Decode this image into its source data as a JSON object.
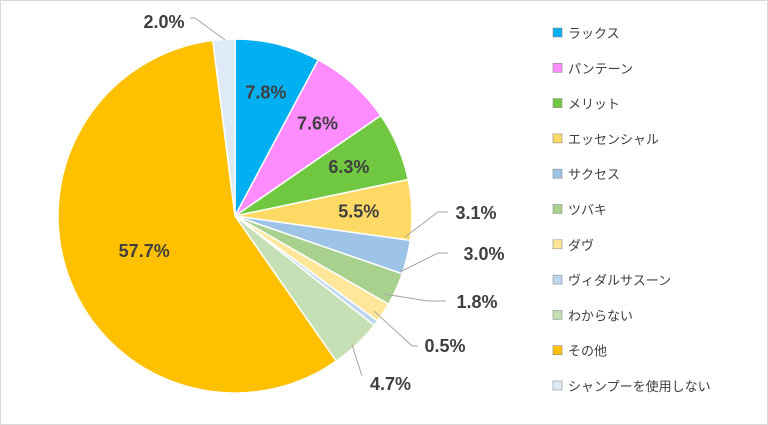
{
  "chart_data": {
    "type": "pie",
    "start_angle_deg": 0,
    "direction": "clockwise",
    "legend_position": "right",
    "slices": [
      {
        "label": "ラックス",
        "value": 7.8,
        "display": "7.8%",
        "color": "#00b0f0",
        "label_mode": "inside"
      },
      {
        "label": "パンテーン",
        "value": 7.6,
        "display": "7.6%",
        "color": "#ff8cff",
        "label_mode": "inside"
      },
      {
        "label": "メリット",
        "value": 6.3,
        "display": "6.3%",
        "color": "#70c840",
        "label_mode": "inside"
      },
      {
        "label": "エッセンシャル",
        "value": 5.5,
        "display": "5.5%",
        "color": "#ffd966",
        "label_mode": "inside"
      },
      {
        "label": "サクセス",
        "value": 3.1,
        "display": "3.1%",
        "color": "#9dc3e6",
        "label_mode": "outside"
      },
      {
        "label": "ツバキ",
        "value": 3.0,
        "display": "3.0%",
        "color": "#a9d18e",
        "label_mode": "outside"
      },
      {
        "label": "ダヴ",
        "value": 1.8,
        "display": "1.8%",
        "color": "#ffe699",
        "label_mode": "outside"
      },
      {
        "label": "ヴィダルサスーン",
        "value": 0.5,
        "display": "0.5%",
        "color": "#bdd7ee",
        "label_mode": "outside"
      },
      {
        "label": "わからない",
        "value": 4.7,
        "display": "4.7%",
        "color": "#c5e0b4",
        "label_mode": "outside"
      },
      {
        "label": "その他",
        "value": 57.7,
        "display": "57.7%",
        "color": "#ffc000",
        "label_mode": "inside"
      },
      {
        "label": "シャンプーを使用しない",
        "value": 2.0,
        "display": "2.0%",
        "color": "#deebf7",
        "label_mode": "outside"
      }
    ]
  }
}
